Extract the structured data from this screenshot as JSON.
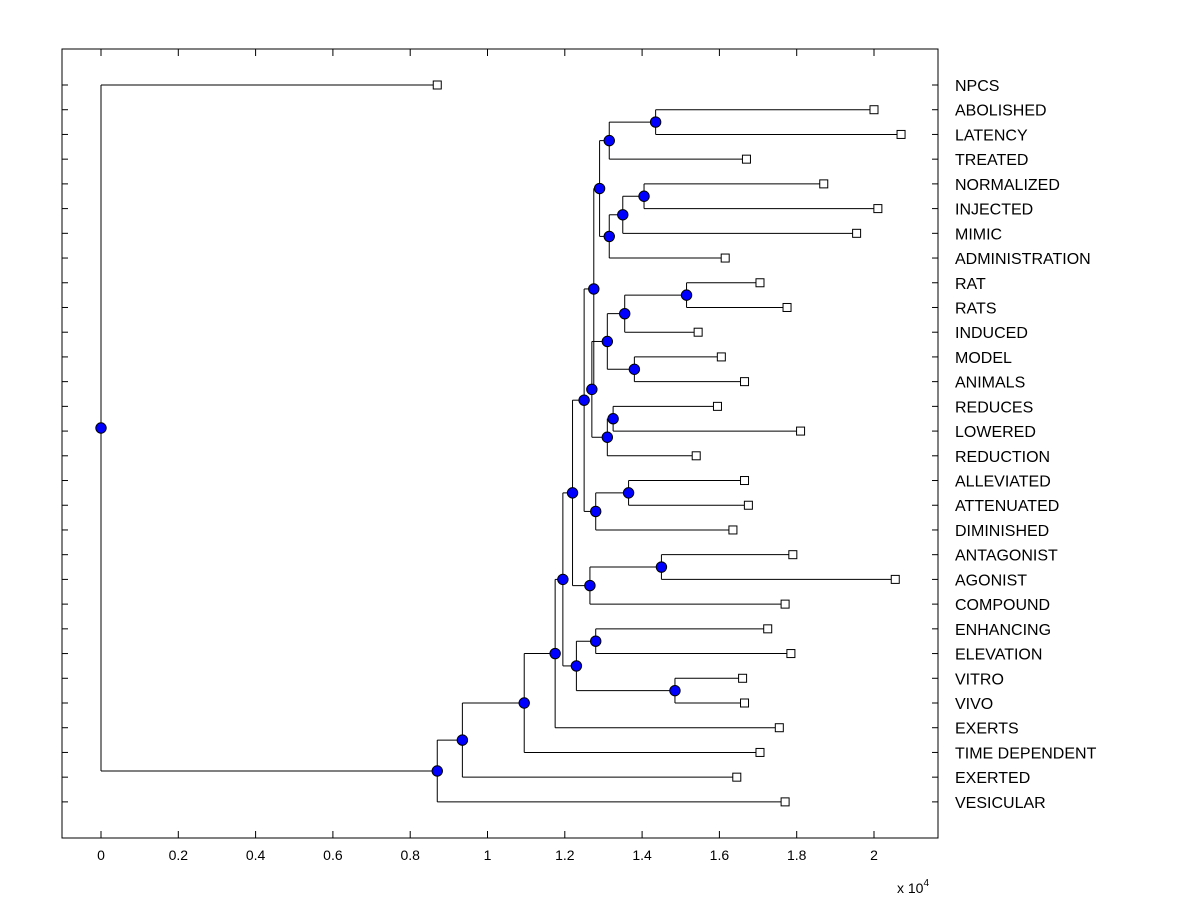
{
  "chart_data": {
    "type": "dendrogram",
    "x_tick_labels": [
      "0",
      "0.2",
      "0.4",
      "0.6",
      "0.8",
      "1",
      "1.2",
      "1.4",
      "1.6",
      "1.8",
      "2"
    ],
    "x_ticks": [
      0,
      0.2,
      0.4,
      0.6,
      0.8,
      1,
      1.2,
      1.4,
      1.6,
      1.8,
      2
    ],
    "xlim": [
      -0.1,
      2.17
    ],
    "x_multiplier": "x 10",
    "x_multiplier_exp": "4",
    "grid": false,
    "colors": {
      "node_fill": "#0000ff",
      "line": "#000000",
      "leaf_fill": "#ffffff"
    },
    "leaves": [
      {
        "label": "NPCS",
        "x": 0.87
      },
      {
        "label": "ABOLISHED",
        "x": 2.0
      },
      {
        "label": "LATENCY",
        "x": 2.07
      },
      {
        "label": "TREATED",
        "x": 1.67
      },
      {
        "label": "NORMALIZED",
        "x": 1.87
      },
      {
        "label": "INJECTED",
        "x": 2.01
      },
      {
        "label": "MIMIC",
        "x": 1.955
      },
      {
        "label": "ADMINISTRATION",
        "x": 1.615
      },
      {
        "label": "RAT",
        "x": 1.705
      },
      {
        "label": "RATS",
        "x": 1.775
      },
      {
        "label": "INDUCED",
        "x": 1.545
      },
      {
        "label": "MODEL",
        "x": 1.605
      },
      {
        "label": "ANIMALS",
        "x": 1.665
      },
      {
        "label": "REDUCES",
        "x": 1.595
      },
      {
        "label": "LOWERED",
        "x": 1.81
      },
      {
        "label": "REDUCTION",
        "x": 1.54
      },
      {
        "label": "ALLEVIATED",
        "x": 1.665
      },
      {
        "label": "ATTENUATED",
        "x": 1.675
      },
      {
        "label": "DIMINISHED",
        "x": 1.635
      },
      {
        "label": "ANTAGONIST",
        "x": 1.79
      },
      {
        "label": "AGONIST",
        "x": 2.055
      },
      {
        "label": "COMPOUND",
        "x": 1.77
      },
      {
        "label": "ENHANCING",
        "x": 1.725
      },
      {
        "label": "ELEVATION",
        "x": 1.785
      },
      {
        "label": "VITRO",
        "x": 1.66
      },
      {
        "label": "VIVO",
        "x": 1.665
      },
      {
        "label": "EXERTS",
        "x": 1.755
      },
      {
        "label": "TIME DEPENDENT",
        "x": 1.705
      },
      {
        "label": "EXERTED",
        "x": 1.645
      },
      {
        "label": "VESICULAR",
        "x": 1.77
      }
    ],
    "nodes": [
      {
        "id": "n1",
        "x": 1.435,
        "children": [
          "L1",
          "L2"
        ]
      },
      {
        "id": "n2",
        "x": 1.315,
        "children": [
          "n1",
          "L3"
        ]
      },
      {
        "id": "n3",
        "x": 1.405,
        "children": [
          "L4",
          "L5"
        ]
      },
      {
        "id": "n4",
        "x": 1.35,
        "children": [
          "n3",
          "L6"
        ]
      },
      {
        "id": "n5",
        "x": 1.315,
        "children": [
          "n4",
          "L7"
        ]
      },
      {
        "id": "n6",
        "x": 1.29,
        "children": [
          "n2",
          "n5"
        ]
      },
      {
        "id": "n7",
        "x": 1.515,
        "children": [
          "L8",
          "L9"
        ]
      },
      {
        "id": "n8",
        "x": 1.355,
        "children": [
          "n7",
          "L10"
        ]
      },
      {
        "id": "n9",
        "x": 1.38,
        "children": [
          "L11",
          "L12"
        ]
      },
      {
        "id": "n10",
        "x": 1.31,
        "children": [
          "n8",
          "n9"
        ]
      },
      {
        "id": "n11",
        "x": 1.325,
        "children": [
          "L13",
          "L14"
        ]
      },
      {
        "id": "n12",
        "x": 1.31,
        "children": [
          "n11",
          "L15"
        ]
      },
      {
        "id": "n13",
        "x": 1.365,
        "children": [
          "L16",
          "L17"
        ]
      },
      {
        "id": "n14",
        "x": 1.28,
        "children": [
          "n13",
          "L18"
        ]
      },
      {
        "id": "n15",
        "x": 1.45,
        "children": [
          "L19",
          "L20"
        ]
      },
      {
        "id": "n16",
        "x": 1.265,
        "children": [
          "n15",
          "L21"
        ]
      },
      {
        "id": "n17",
        "x": 1.28,
        "children": [
          "L22",
          "L23"
        ]
      },
      {
        "id": "n18",
        "x": 1.485,
        "children": [
          "L24",
          "L25"
        ]
      },
      {
        "id": "n19",
        "x": 1.23,
        "children": [
          "n17",
          "n18"
        ]
      },
      {
        "id": "n20",
        "x": 1.27,
        "children": [
          "n10",
          "n12"
        ]
      },
      {
        "id": "n21",
        "x": 1.275,
        "children": [
          "n6",
          "n20"
        ]
      },
      {
        "id": "n22",
        "x": 1.25,
        "children": [
          "n21",
          "n14"
        ]
      },
      {
        "id": "n23",
        "x": 1.22,
        "children": [
          "n22",
          "n16"
        ]
      },
      {
        "id": "n24",
        "x": 1.195,
        "children": [
          "n23",
          "n19"
        ]
      },
      {
        "id": "n25",
        "x": 1.175,
        "children": [
          "n24",
          "L26"
        ]
      },
      {
        "id": "n26",
        "x": 1.095,
        "children": [
          "n25",
          "L27"
        ]
      },
      {
        "id": "n27",
        "x": 0.935,
        "children": [
          "n26",
          "L28"
        ]
      },
      {
        "id": "n28",
        "x": 0.87,
        "children": [
          "n27",
          "L29"
        ]
      },
      {
        "id": "n29",
        "x": 0.0,
        "children": [
          "L0",
          "n28"
        ]
      }
    ]
  }
}
